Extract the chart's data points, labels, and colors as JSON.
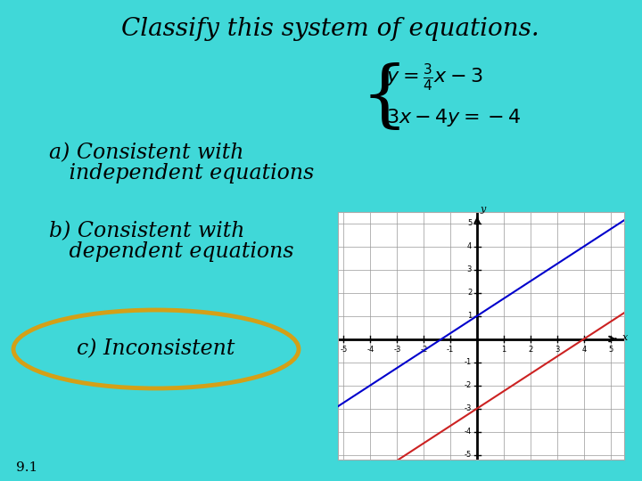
{
  "bg_color": "#40D8D8",
  "title": "Classify this system of equations.",
  "title_fontsize": 20,
  "option_a_line1": "a) Consistent with",
  "option_a_line2": "   independent equations",
  "option_b_line1": "b) Consistent with",
  "option_b_line2": "   dependent equations",
  "option_c": "c) Inconsistent",
  "graph_xlim": [
    -5,
    5
  ],
  "graph_ylim": [
    -5,
    5
  ],
  "line_blue_color": "#0000CC",
  "line_blue_slope": 0.75,
  "line_blue_intercept": 1.0,
  "line_red_color": "#CC2222",
  "line_red_slope": 0.75,
  "line_red_intercept": -3.0,
  "ellipse_color": "#D4A017",
  "text_color": "#000000",
  "footnote": "9.1"
}
